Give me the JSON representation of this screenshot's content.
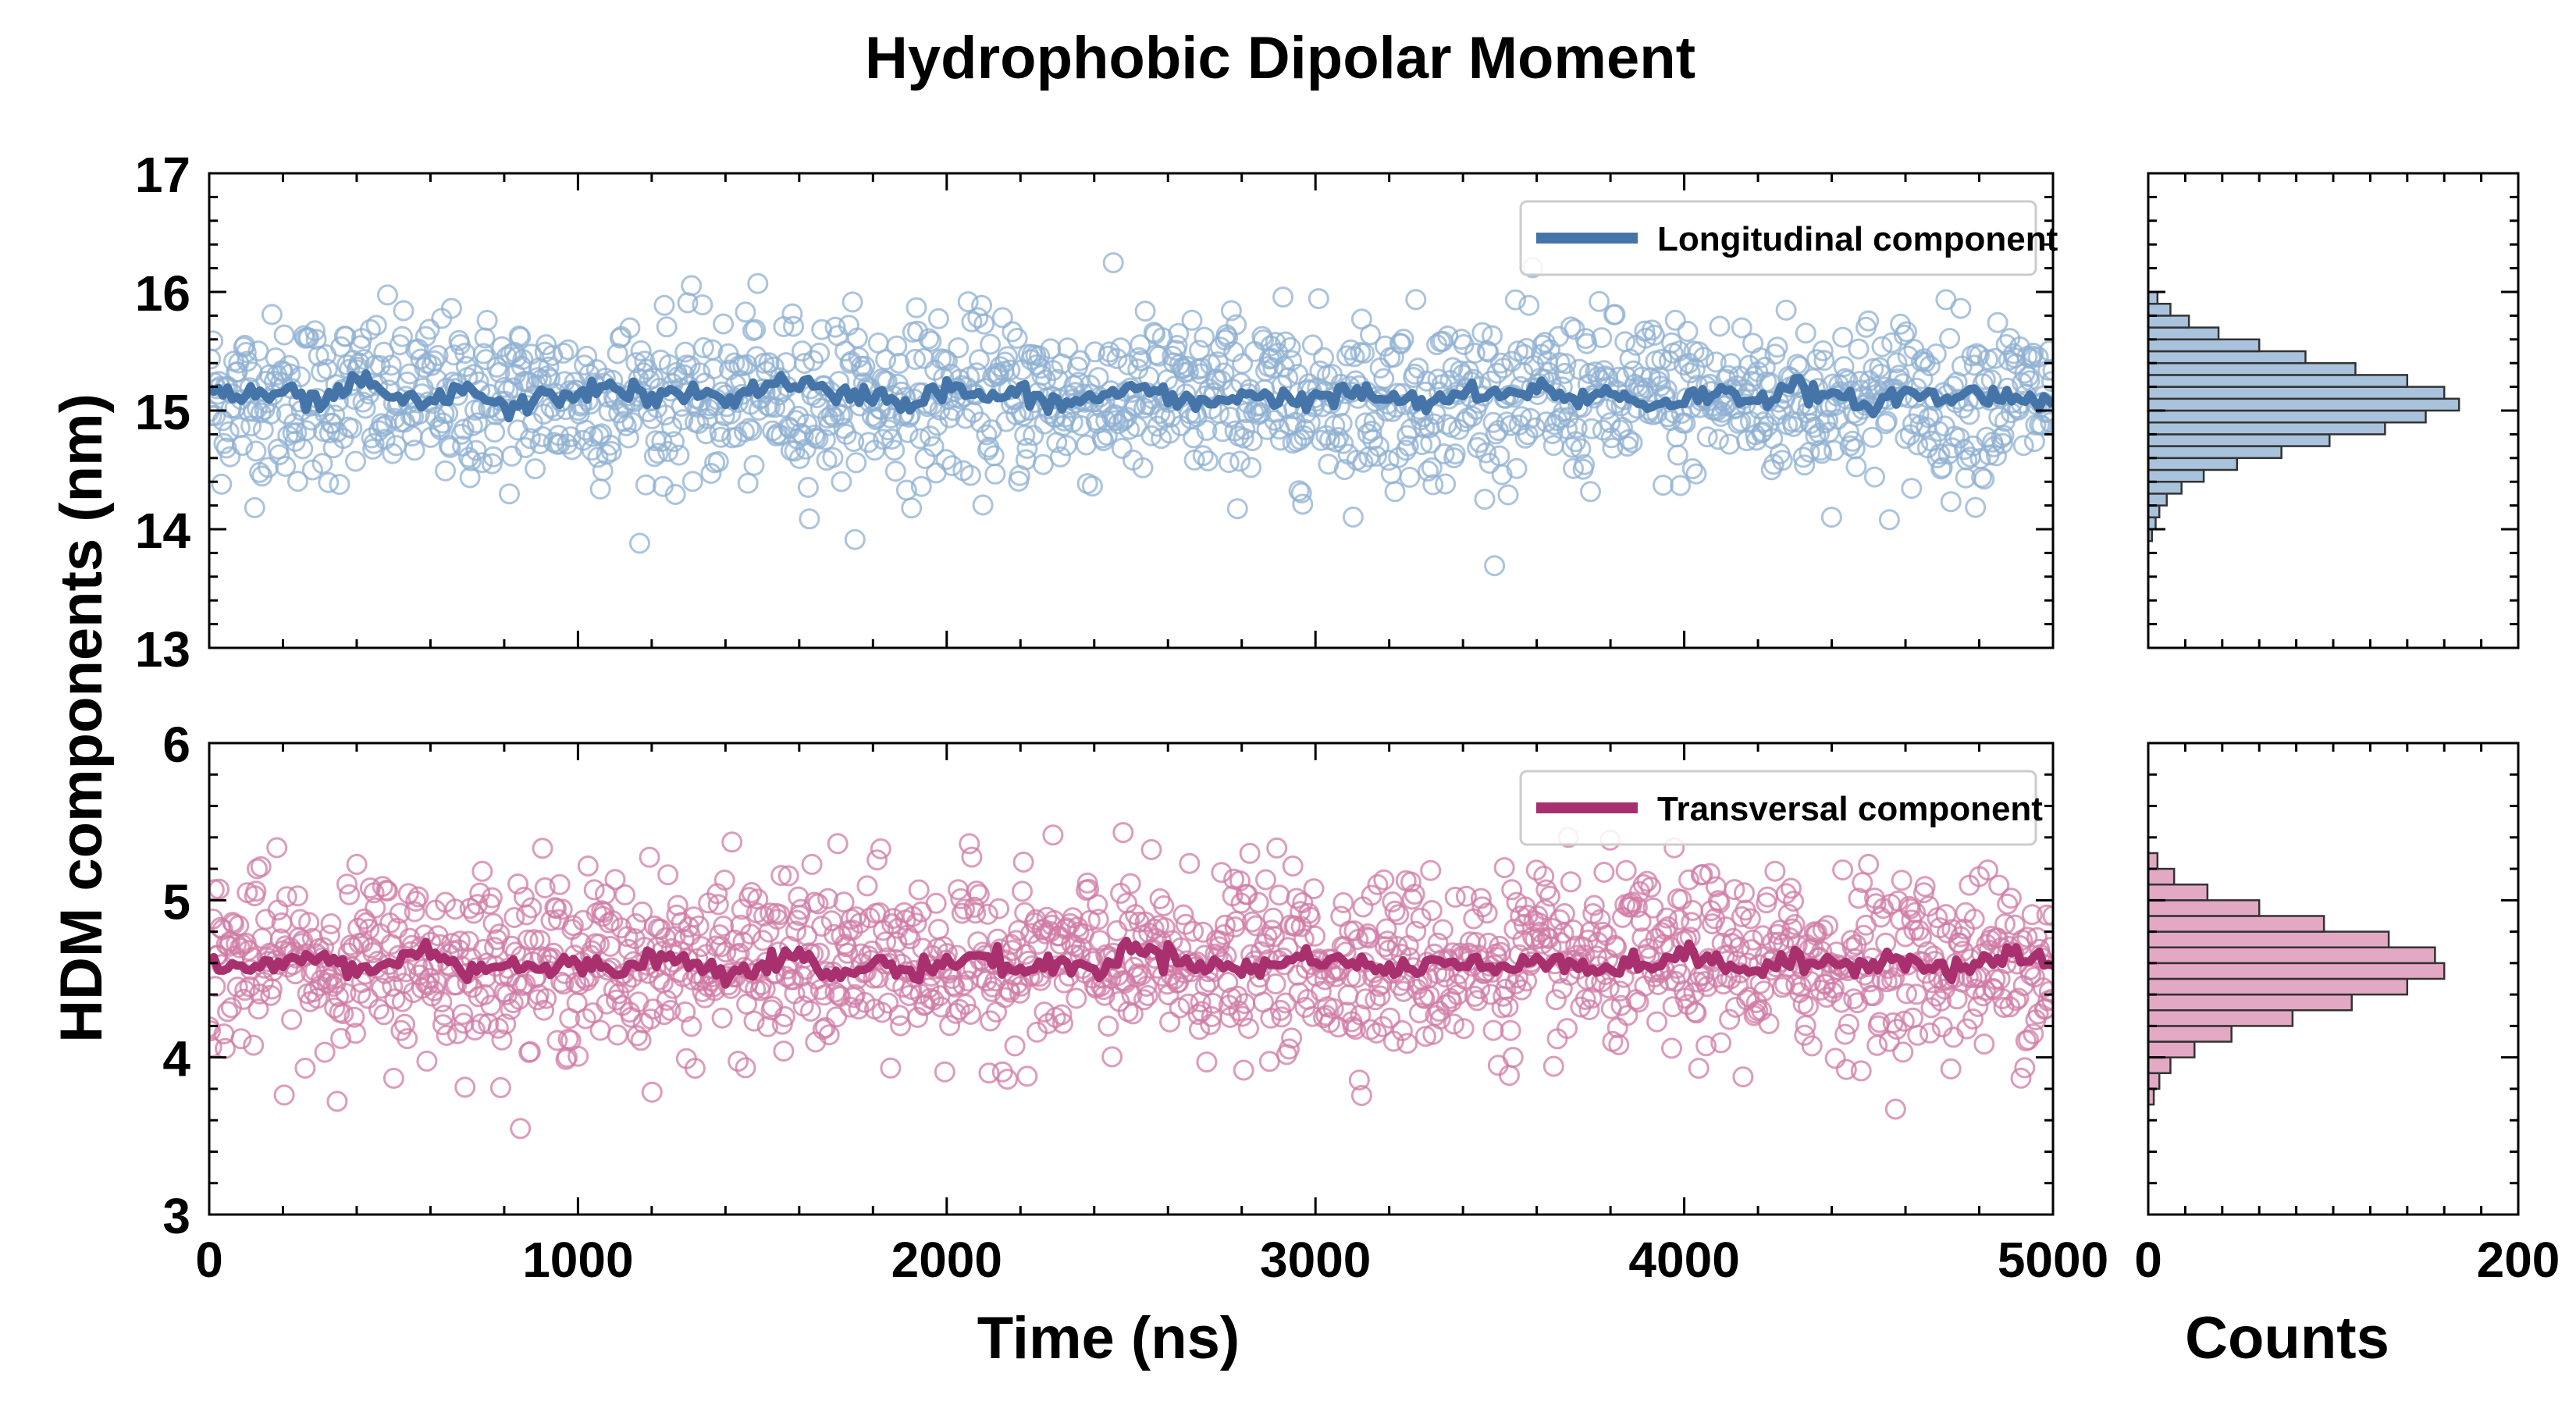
{
  "chart_data": {
    "title": "Hydrophobic Dipolar Moment",
    "shared_ylabel": "HDM components (nm)",
    "colors": {
      "longitudinal": "#4575a8",
      "longitudinal_point": "#8fb0d2",
      "transversal": "#a8306f",
      "transversal_point": "#d07ba6",
      "hist_longitudinal_fill": "#a9c3dc",
      "hist_transversal_fill": "#e3a8c4"
    },
    "panels": [
      {
        "id": "top",
        "type": "scatter+line",
        "xlim": [
          0,
          5000
        ],
        "ylim": [
          13,
          17
        ],
        "yticks": [
          "13",
          "14",
          "15",
          "16",
          "17"
        ],
        "xticks": [
          0,
          1000,
          2000,
          3000,
          4000,
          5000
        ],
        "legend": "Longitudinal component",
        "legend_position": "top-right",
        "scatter_mean": 15.1,
        "scatter_spread": 0.35,
        "running_mean": [
          15.2,
          15.1,
          15.15,
          15.05,
          15.25,
          15.1,
          15.05,
          15.2,
          15.0,
          15.1,
          15.15,
          15.2,
          15.1,
          15.15,
          15.1,
          15.2,
          15.25,
          15.1,
          15.15,
          15.05,
          15.2,
          15.1,
          15.15,
          15.05,
          15.1,
          15.2,
          15.1,
          15.05,
          15.15,
          15.1,
          15.1,
          15.15,
          15.1,
          15.05,
          15.15,
          15.1,
          15.2,
          15.1,
          15.15,
          15.05,
          15.1,
          15.15,
          15.1,
          15.2,
          15.1,
          15.05,
          15.15,
          15.1,
          15.15,
          15.1,
          15.1
        ]
      },
      {
        "id": "bottom",
        "type": "scatter+line",
        "xlim": [
          0,
          5000
        ],
        "ylim": [
          3,
          6
        ],
        "yticks": [
          "3",
          "4",
          "5",
          "6"
        ],
        "xticks": [
          0,
          1000,
          2000,
          3000,
          4000,
          5000
        ],
        "xtick_labels": [
          "0",
          "1000",
          "2000",
          "3000",
          "4000",
          "5000"
        ],
        "xlabel": "Time (ns)",
        "legend": "Transversal component",
        "legend_position": "top-right",
        "scatter_mean": 4.6,
        "scatter_spread": 0.28,
        "running_mean": [
          4.6,
          4.55,
          4.6,
          4.65,
          4.55,
          4.6,
          4.7,
          4.55,
          4.6,
          4.55,
          4.6,
          4.55,
          4.65,
          4.6,
          4.55,
          4.6,
          4.65,
          4.5,
          4.6,
          4.55,
          4.6,
          4.65,
          4.55,
          4.6,
          4.55,
          4.7,
          4.65,
          4.6,
          4.55,
          4.6,
          4.65,
          4.6,
          4.55,
          4.6,
          4.6,
          4.55,
          4.65,
          4.6,
          4.55,
          4.6,
          4.65,
          4.6,
          4.55,
          4.6,
          4.6,
          4.6,
          4.65,
          4.55,
          4.6,
          4.65,
          4.6
        ]
      }
    ],
    "histograms": [
      {
        "id": "top-hist",
        "type": "bar",
        "orientation": "horizontal",
        "ylim": [
          13,
          17
        ],
        "xlim": [
          0,
          200
        ],
        "bin_centers": [
          13.95,
          14.05,
          14.15,
          14.25,
          14.35,
          14.45,
          14.55,
          14.65,
          14.75,
          14.85,
          14.95,
          15.05,
          15.15,
          15.25,
          15.35,
          15.45,
          15.55,
          15.65,
          15.75,
          15.85,
          15.95
        ],
        "counts": [
          2,
          4,
          6,
          10,
          18,
          30,
          48,
          72,
          98,
          128,
          150,
          168,
          160,
          140,
          112,
          85,
          60,
          38,
          22,
          12,
          5
        ]
      },
      {
        "id": "bottom-hist",
        "type": "bar",
        "orientation": "horizontal",
        "ylim": [
          3,
          6
        ],
        "xlim": [
          0,
          200
        ],
        "xticks": [
          "0",
          "200"
        ],
        "xlabel": "Counts",
        "bin_centers": [
          3.75,
          3.85,
          3.95,
          4.05,
          4.15,
          4.25,
          4.35,
          4.45,
          4.55,
          4.65,
          4.75,
          4.85,
          4.95,
          5.05,
          5.15,
          5.25
        ],
        "counts": [
          3,
          6,
          12,
          25,
          45,
          78,
          110,
          140,
          160,
          155,
          130,
          95,
          60,
          32,
          14,
          5
        ]
      }
    ]
  }
}
